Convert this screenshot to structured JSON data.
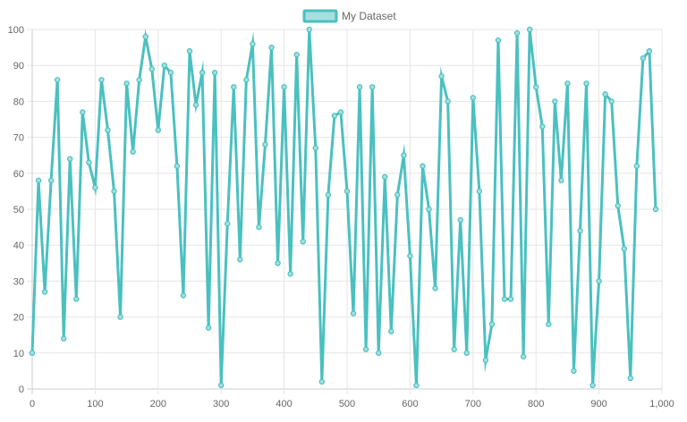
{
  "chart_data": {
    "type": "line",
    "title": "",
    "xlabel": "",
    "ylabel": "",
    "xlim": [
      0,
      1000
    ],
    "ylim": [
      0,
      100
    ],
    "x_ticks": [
      "0",
      "100",
      "200",
      "300",
      "400",
      "500",
      "600",
      "700",
      "800",
      "900",
      "1,000"
    ],
    "y_ticks": [
      "0",
      "10",
      "20",
      "30",
      "40",
      "50",
      "60",
      "70",
      "80",
      "90",
      "100"
    ],
    "grid": true,
    "legend_position": "top",
    "series": [
      {
        "name": "My Dataset",
        "color": "#4bc0c0",
        "fill": "#a5dfdf",
        "x": [
          0,
          10,
          20,
          30,
          40,
          50,
          60,
          70,
          80,
          90,
          100,
          110,
          120,
          130,
          140,
          150,
          160,
          170,
          180,
          190,
          200,
          210,
          220,
          230,
          240,
          250,
          260,
          270,
          280,
          290,
          300,
          310,
          320,
          330,
          340,
          350,
          360,
          370,
          380,
          390,
          400,
          410,
          420,
          430,
          440,
          450,
          460,
          470,
          480,
          490,
          500,
          510,
          520,
          530,
          540,
          550,
          560,
          570,
          580,
          590,
          600,
          610,
          620,
          630,
          640,
          650,
          660,
          670,
          680,
          690,
          700,
          710,
          720,
          730,
          740,
          750,
          760,
          770,
          780,
          790,
          800,
          810,
          820,
          830,
          840,
          850,
          860,
          870,
          880,
          890,
          900,
          910,
          920,
          930,
          940,
          950,
          960,
          970,
          980,
          990
        ],
        "y": [
          10,
          58,
          27,
          58,
          86,
          14,
          64,
          25,
          77,
          63,
          56,
          86,
          72,
          55,
          20,
          85,
          66,
          86,
          98,
          89,
          72,
          90,
          88,
          62,
          26,
          94,
          79,
          88,
          17,
          88,
          1,
          46,
          84,
          36,
          86,
          96,
          45,
          68,
          95,
          35,
          84,
          32,
          93,
          41,
          100,
          67,
          2,
          54,
          76,
          77,
          55,
          21,
          84,
          11,
          84,
          10,
          59,
          16,
          54,
          65,
          37,
          1,
          62,
          50,
          28,
          87,
          80,
          11,
          47,
          10,
          81,
          55,
          8,
          18,
          97,
          25,
          25,
          99,
          9,
          100,
          84,
          73,
          18,
          80,
          58,
          85,
          5,
          44,
          85,
          1,
          30,
          82,
          80,
          51,
          39,
          3,
          62,
          92,
          94,
          50
        ]
      }
    ]
  }
}
